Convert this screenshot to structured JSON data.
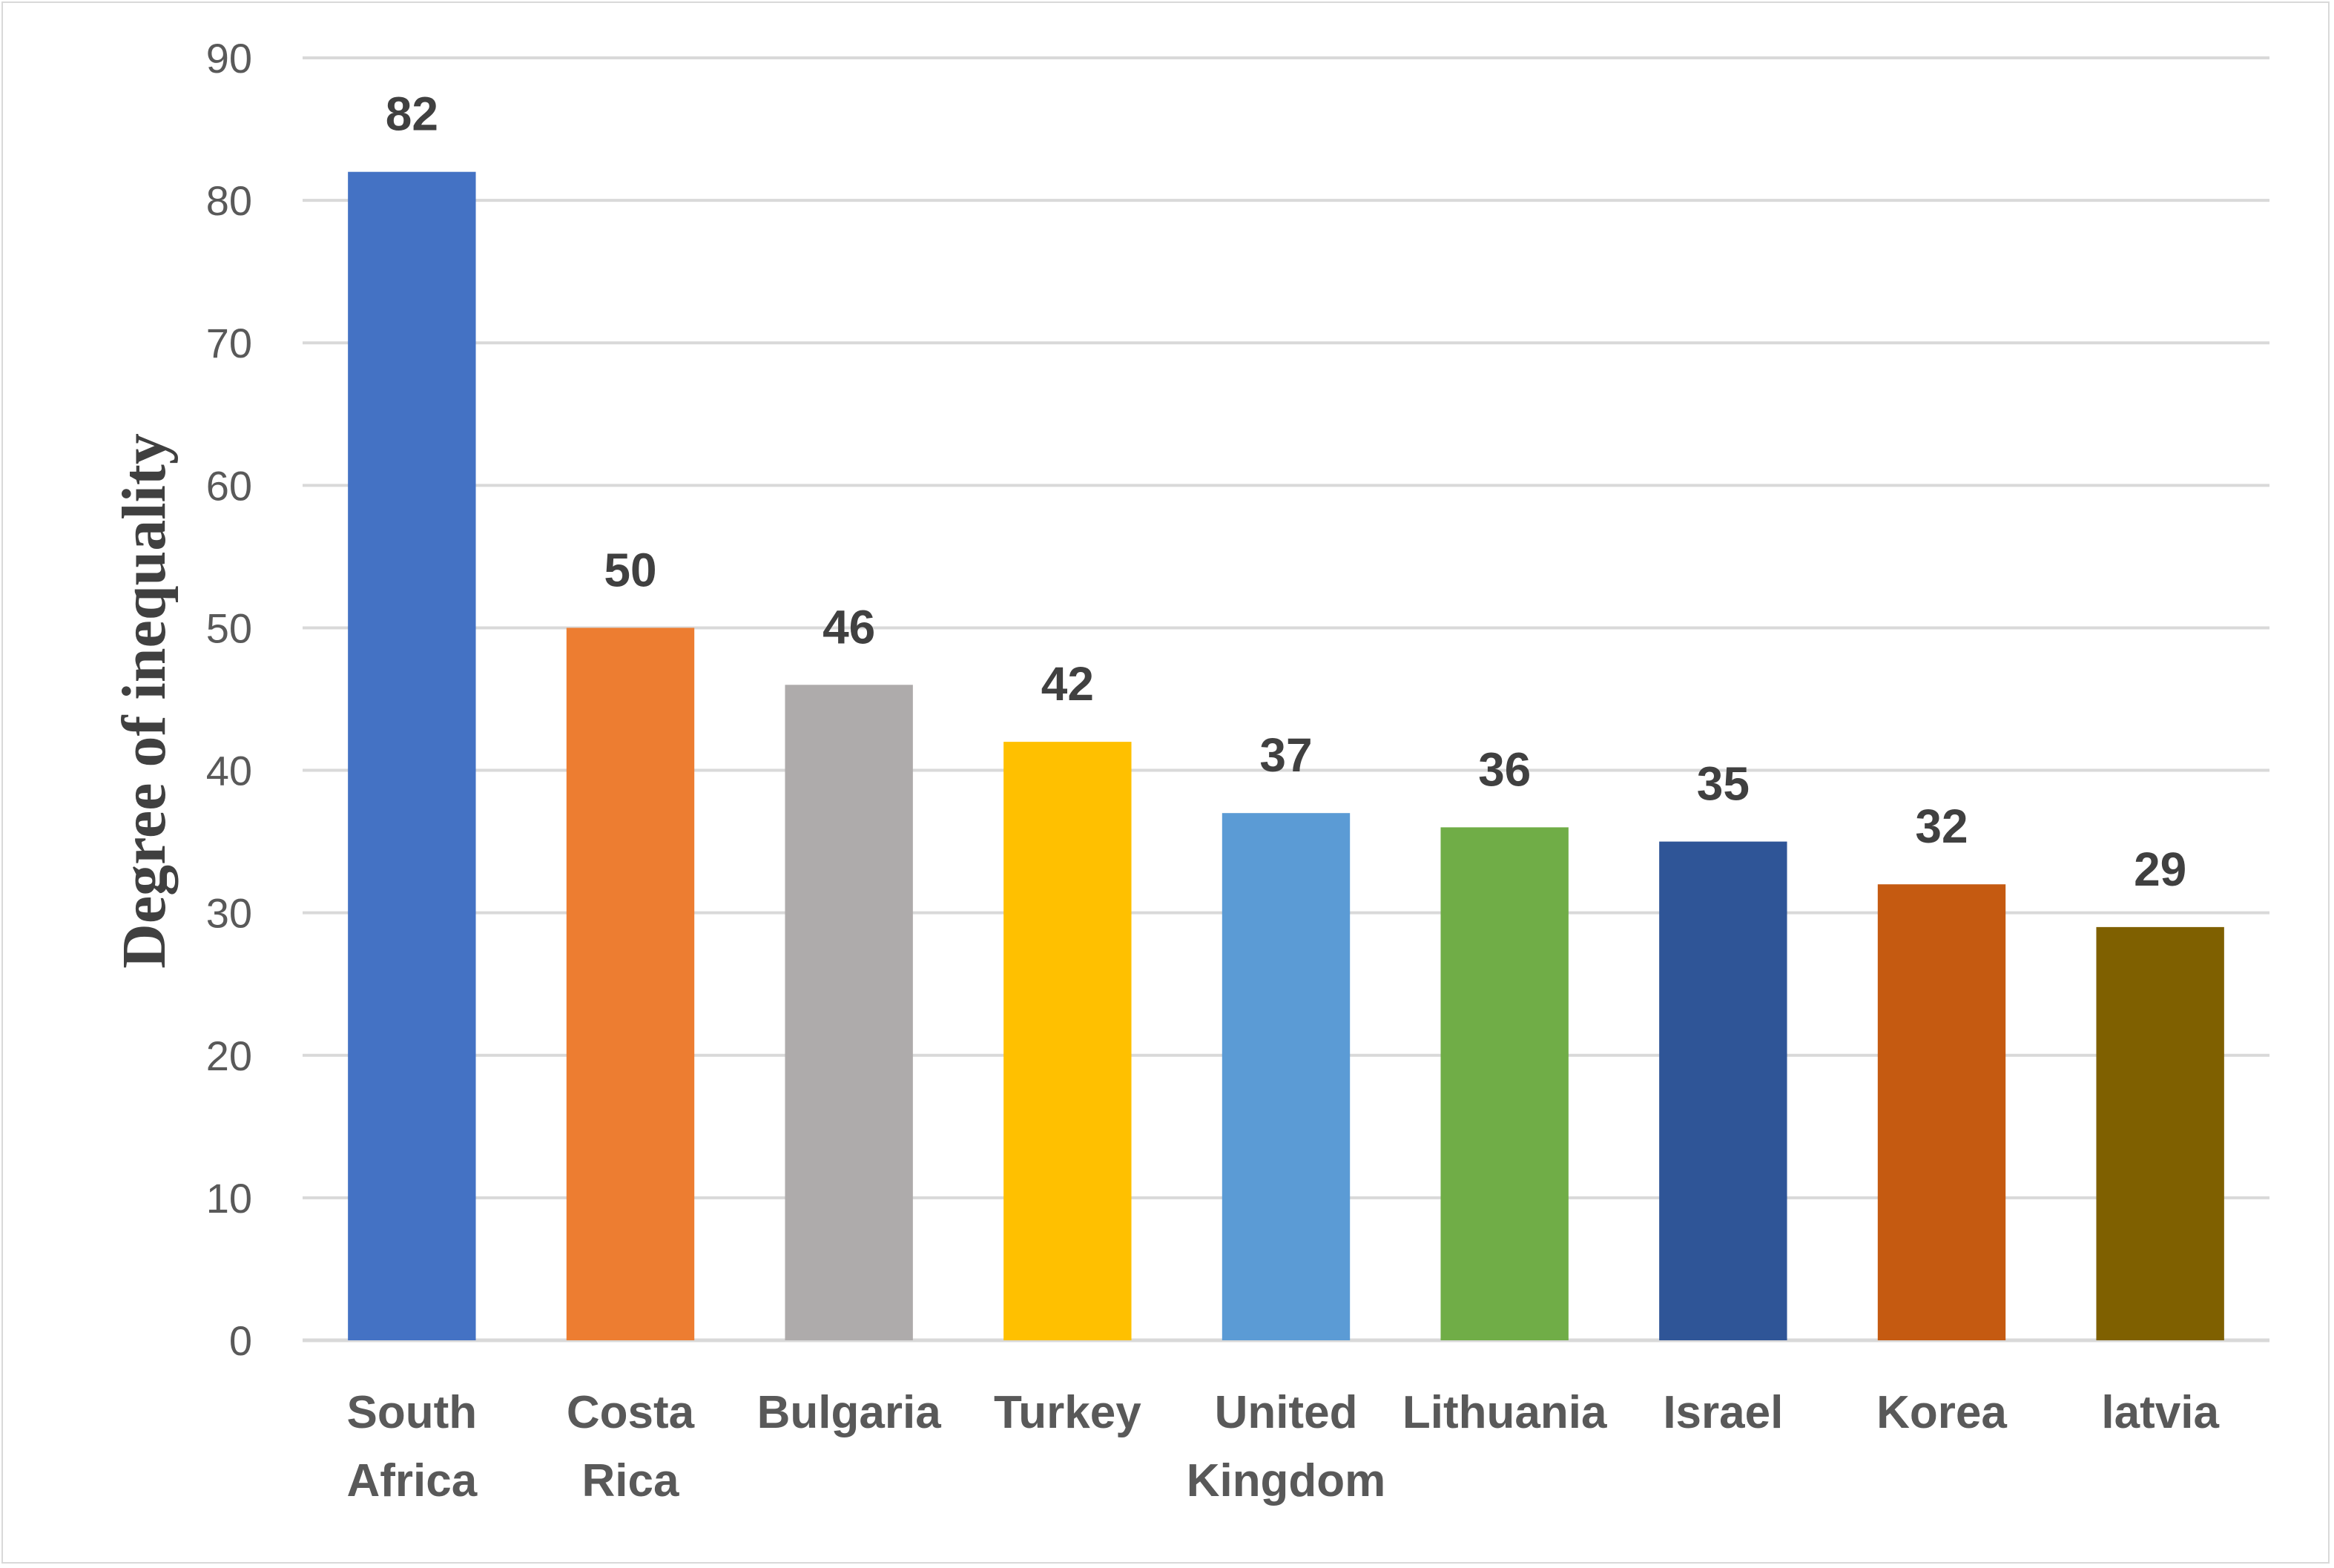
{
  "chart_data": {
    "type": "bar",
    "title": "",
    "xlabel": "",
    "ylabel": "Degree of inequality",
    "ylim": [
      0,
      90
    ],
    "yticks": [
      0,
      10,
      20,
      30,
      40,
      50,
      60,
      70,
      80,
      90
    ],
    "grid": true,
    "legend": "none",
    "categories": [
      [
        "South",
        "Africa"
      ],
      [
        "Costa",
        "Rica"
      ],
      [
        "Bulgaria"
      ],
      [
        "Turkey"
      ],
      [
        "United",
        "Kingdom"
      ],
      [
        "Lithuania"
      ],
      [
        "Israel"
      ],
      [
        "Korea"
      ],
      [
        "latvia"
      ]
    ],
    "values": [
      82,
      50,
      46,
      42,
      37,
      36,
      35,
      32,
      29
    ],
    "colors": [
      "#4472C4",
      "#ED7D31",
      "#AEABAB",
      "#FFC000",
      "#5B9BD5",
      "#70AD47",
      "#2F5597",
      "#C55A11",
      "#7F6000"
    ],
    "data_labels": [
      "82",
      "50",
      "46",
      "42",
      "37",
      "36",
      "35",
      "32",
      "29"
    ]
  }
}
